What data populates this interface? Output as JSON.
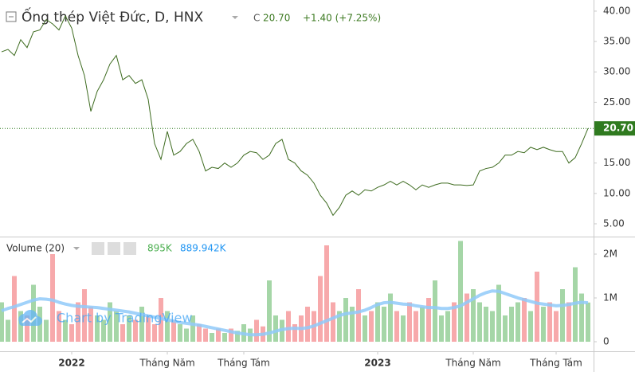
{
  "chart_data": [
    {
      "type": "line",
      "title": "Ống thép Việt Đức, D, HNX",
      "close_prefix": "C",
      "last_price": 20.7,
      "last_price_label": "20.70",
      "change": "+1.40 (+7.25%)",
      "color": "#3d6b1f",
      "last_color": "#2f7a1f",
      "grid": false,
      "ylim": [
        3.03,
        41.83
      ],
      "yticks": [
        {
          "value": 5,
          "label": "5.00"
        },
        {
          "value": 10,
          "label": "10.00"
        },
        {
          "value": 15,
          "label": "15.00"
        },
        {
          "value": 20,
          "label": "20.00"
        },
        {
          "value": 25,
          "label": "25.00"
        },
        {
          "value": 30,
          "label": "30.00"
        },
        {
          "value": 35,
          "label": "35.00"
        },
        {
          "value": 40,
          "label": "40.00"
        }
      ],
      "values": [
        33.3,
        33.7,
        32.7,
        35.3,
        34,
        36.6,
        36.9,
        38.6,
        37.9,
        36.9,
        39.2,
        37.2,
        32.7,
        29.4,
        23.5,
        26.8,
        28.7,
        31.3,
        32.7,
        28.7,
        29.4,
        28.1,
        28.7,
        25.5,
        18.2,
        15.6,
        20.2,
        16.3,
        16.9,
        18.2,
        18.9,
        16.9,
        13.7,
        14.3,
        14.1,
        15,
        14.3,
        15,
        16.3,
        16.9,
        16.7,
        15.6,
        16.3,
        18.2,
        18.9,
        15.6,
        15,
        13.7,
        13,
        11.7,
        9.7,
        8.4,
        6.4,
        7.7,
        9.7,
        10.4,
        9.7,
        10.6,
        10.4,
        11,
        11.4,
        12,
        11.4,
        12,
        11.4,
        10.6,
        11.4,
        11,
        11.4,
        11.7,
        11.7,
        11.4,
        11.4,
        11.3,
        11.4,
        13.7,
        14.1,
        14.3,
        15,
        16.3,
        16.3,
        16.9,
        16.7,
        17.6,
        17.2,
        17.6,
        17.2,
        16.9,
        16.9,
        15,
        15.9,
        18.2,
        20.7
      ]
    },
    {
      "type": "bar",
      "title": "Volume (20)",
      "value_label": "895K",
      "ma_label": "889.942K",
      "up_color": "#a5d6a7",
      "down_color": "#f7a9ab",
      "ma_color": "#90caf9",
      "watermark": "Chart by TradingView",
      "ylim": [
        -218000,
        2382000
      ],
      "yticks": [
        {
          "value": 0,
          "label": "0"
        },
        {
          "value": 1000000,
          "label": "1M"
        },
        {
          "value": 2000000,
          "label": "2M"
        }
      ],
      "categories": [
        null,
        null,
        null,
        null,
        null,
        null,
        null,
        null,
        null,
        null,
        null,
        "2022",
        null,
        null,
        null,
        null,
        null,
        null,
        null,
        null,
        null,
        null,
        null,
        null,
        null,
        null,
        "Tháng Năm",
        null,
        null,
        null,
        null,
        null,
        null,
        null,
        null,
        null,
        null,
        null,
        "Tháng Tám",
        null,
        null,
        null,
        null,
        null,
        null,
        null,
        null,
        null,
        null,
        null,
        null,
        null,
        null,
        null,
        null,
        null,
        null,
        null,
        null,
        "2023",
        null,
        null,
        null,
        null,
        null,
        null,
        null,
        null,
        null,
        null,
        null,
        null,
        null,
        null,
        "Tháng Năm",
        null,
        null,
        null,
        null,
        null,
        null,
        null,
        null,
        null,
        null,
        null,
        null,
        "Tháng Tám",
        null,
        null,
        null,
        null,
        null
      ],
      "values": [
        900000,
        500000,
        1500000,
        700000,
        600000,
        1300000,
        800000,
        500000,
        2000000,
        700000,
        500000,
        400000,
        900000,
        1200000,
        800000,
        600000,
        500000,
        900000,
        700000,
        400000,
        600000,
        500000,
        800000,
        600000,
        400000,
        1000000,
        700000,
        500000,
        400000,
        300000,
        600000,
        400000,
        300000,
        200000,
        300000,
        200000,
        300000,
        250000,
        400000,
        300000,
        500000,
        350000,
        1400000,
        600000,
        500000,
        700000,
        400000,
        600000,
        800000,
        700000,
        1500000,
        2200000,
        900000,
        700000,
        1000000,
        800000,
        1200000,
        600000,
        700000,
        900000,
        800000,
        1100000,
        700000,
        600000,
        900000,
        700000,
        800000,
        1000000,
        1400000,
        600000,
        700000,
        900000,
        2300000,
        1100000,
        1200000,
        900000,
        800000,
        700000,
        1300000,
        600000,
        800000,
        900000,
        1000000,
        700000,
        1600000,
        800000,
        900000,
        700000,
        1200000,
        900000,
        1700000,
        1100000,
        895000
      ],
      "ma": [
        710000,
        760000,
        800000,
        850000,
        900000,
        950000,
        980000,
        970000,
        950000,
        900000,
        860000,
        830000,
        810000,
        800000,
        790000,
        780000,
        760000,
        740000,
        720000,
        700000,
        680000,
        650000,
        620000,
        590000,
        560000,
        530000,
        500000,
        470000,
        440000,
        420000,
        400000,
        380000,
        350000,
        320000,
        290000,
        260000,
        230000,
        200000,
        180000,
        160000,
        160000,
        170000,
        200000,
        240000,
        280000,
        300000,
        310000,
        300000,
        320000,
        360000,
        420000,
        480000,
        540000,
        600000,
        640000,
        660000,
        680000,
        720000,
        780000,
        850000,
        890000,
        900000,
        880000,
        860000,
        850000,
        820000,
        800000,
        780000,
        780000,
        760000,
        760000,
        780000,
        820000,
        900000,
        980000,
        1060000,
        1120000,
        1160000,
        1150000,
        1100000,
        1050000,
        1000000,
        960000,
        920000,
        880000,
        860000,
        840000,
        820000,
        830000,
        850000,
        880000,
        900000,
        889942
      ]
    }
  ]
}
